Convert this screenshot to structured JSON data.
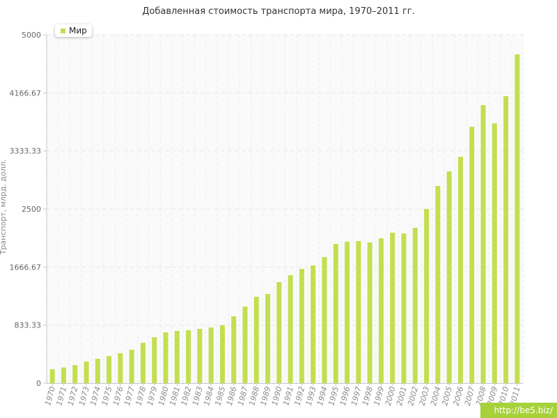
{
  "chart_data": {
    "type": "bar",
    "title": "Добавленная стоимость транспорта мира, 1970–2011 гг.",
    "ylabel": "Транспорт, млрд. долл.",
    "xlabel": "",
    "ylim": [
      0,
      5000
    ],
    "yticks": [
      "0",
      "833.33",
      "1666.67",
      "2500",
      "3333.33",
      "4166.67",
      "5000"
    ],
    "grid": true,
    "legend_position": "top-left",
    "bar_color": "#c3df50",
    "categories": [
      "1970",
      "1971",
      "1972",
      "1973",
      "1974",
      "1975",
      "1976",
      "1977",
      "1978",
      "1979",
      "1980",
      "1981",
      "1982",
      "1983",
      "1984",
      "1985",
      "1986",
      "1987",
      "1988",
      "1989",
      "1990",
      "1991",
      "1992",
      "1993",
      "1994",
      "1995",
      "1996",
      "1997",
      "1998",
      "1999",
      "2000",
      "2001",
      "2002",
      "2003",
      "2004",
      "2005",
      "2006",
      "2007",
      "2008",
      "2009",
      "2010",
      "2011"
    ],
    "series": [
      {
        "name": "Мир",
        "values": [
          200,
          225,
          260,
          310,
          350,
          390,
          430,
          480,
          580,
          660,
          730,
          750,
          760,
          780,
          800,
          830,
          960,
          1100,
          1240,
          1280,
          1450,
          1550,
          1640,
          1690,
          1810,
          2000,
          2030,
          2040,
          2020,
          2080,
          2160,
          2150,
          2230,
          2500,
          2830,
          3040,
          3250,
          3680,
          3990,
          3730,
          4120,
          4720
        ]
      }
    ]
  },
  "watermark": "http://be5.biz/"
}
